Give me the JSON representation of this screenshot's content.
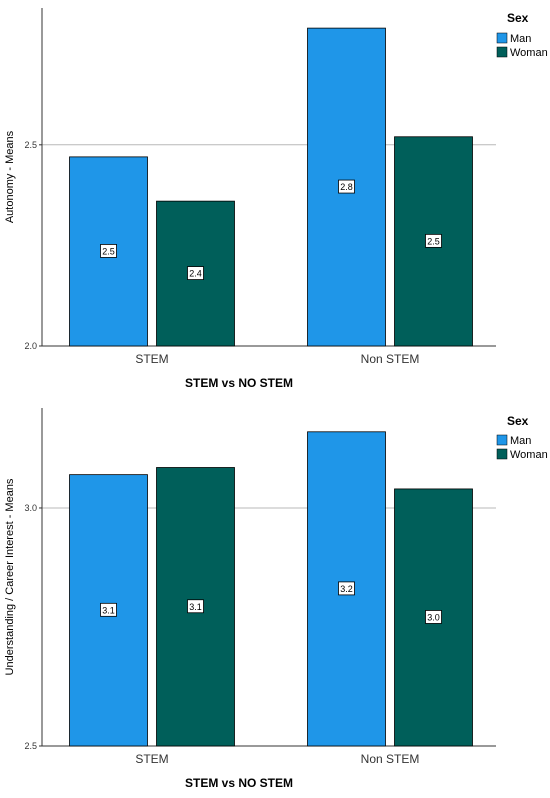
{
  "colors": {
    "man": "#1f96e8",
    "woman": "#005f5a"
  },
  "chart_data": [
    {
      "type": "bar",
      "categories": [
        "STEM",
        "Non STEM"
      ],
      "series": [
        {
          "name": "Man",
          "values": [
            2.47,
            2.79
          ],
          "labels": [
            "2.5",
            "2.8"
          ]
        },
        {
          "name": "Woman",
          "values": [
            2.36,
            2.52
          ],
          "labels": [
            "2.4",
            "2.5"
          ]
        }
      ],
      "xlabel": "STEM vs NO STEM",
      "ylabel": "Autonomy - Means",
      "ylim": [
        2.0,
        2.84
      ],
      "yticks": [
        2.0,
        2.5
      ],
      "ytick_labels": [
        "2.0",
        "2.5"
      ],
      "legend_title": "Sex",
      "legend_position": "top-right",
      "grid": true
    },
    {
      "type": "bar",
      "categories": [
        "STEM",
        "Non STEM"
      ],
      "series": [
        {
          "name": "Man",
          "values": [
            3.07,
            3.16
          ],
          "labels": [
            "3.1",
            "3.2"
          ]
        },
        {
          "name": "Woman",
          "values": [
            3.085,
            3.04
          ],
          "labels": [
            "3.1",
            "3.0"
          ]
        }
      ],
      "xlabel": "STEM vs NO STEM",
      "ylabel": "Understanding / Career Interest - Means",
      "ylim": [
        2.5,
        3.21
      ],
      "yticks": [
        2.5,
        3.0
      ],
      "ytick_labels": [
        "2.5",
        "3.0"
      ],
      "legend_title": "Sex",
      "legend_position": "top-right",
      "grid": true
    }
  ]
}
